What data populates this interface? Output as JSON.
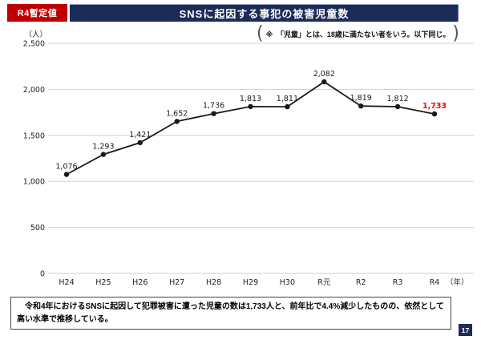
{
  "header": {
    "badge_label": "R4暫定値",
    "title": "SNSに起因する事犯の被害児童数"
  },
  "note": {
    "text": "※　「児童」とは、18歳に満たない者をいう。以下同じ。"
  },
  "chart_data": {
    "type": "line",
    "title": "SNSに起因する事犯の被害児童数",
    "unit_label": "（人）",
    "year_label": "（年）",
    "categories": [
      "H24",
      "H25",
      "H26",
      "H27",
      "H28",
      "H29",
      "H30",
      "R元",
      "R2",
      "R3",
      "R4"
    ],
    "values": [
      1076,
      1293,
      1421,
      1652,
      1736,
      1813,
      1811,
      2082,
      1819,
      1812,
      1733
    ],
    "point_labels": [
      "1,076",
      "1,293",
      "1,421",
      "1,652",
      "1,736",
      "1,813",
      "1,811",
      "2,082",
      "1,819",
      "1,812",
      "1,733"
    ],
    "ylim": [
      0,
      2500
    ],
    "ytick_values": [
      0,
      500,
      1000,
      1500,
      2000,
      2500
    ],
    "ytick_labels": [
      "0",
      "500",
      "1,000",
      "1,500",
      "2,000",
      "2,500"
    ],
    "grid": true,
    "legend": "none",
    "line_color": "#1a1a1a",
    "marker_color": "#1a1a1a",
    "grid_color": "#c9d0da",
    "label_color": "#1a1a1a",
    "last_label_color": "#ff0000"
  },
  "footer": {
    "text": "　令和4年におけるSNSに起因して犯罪被害に遭った児童の数は1,733人と、前年比で4.4%減少したものの、依然として高い水準で推移している。",
    "page": "17"
  },
  "colors": {
    "accent_red": "#C00000",
    "navy": "#1C2C58",
    "highlight_red": "#FF0000",
    "grid_gray": "#C9D0DA"
  }
}
